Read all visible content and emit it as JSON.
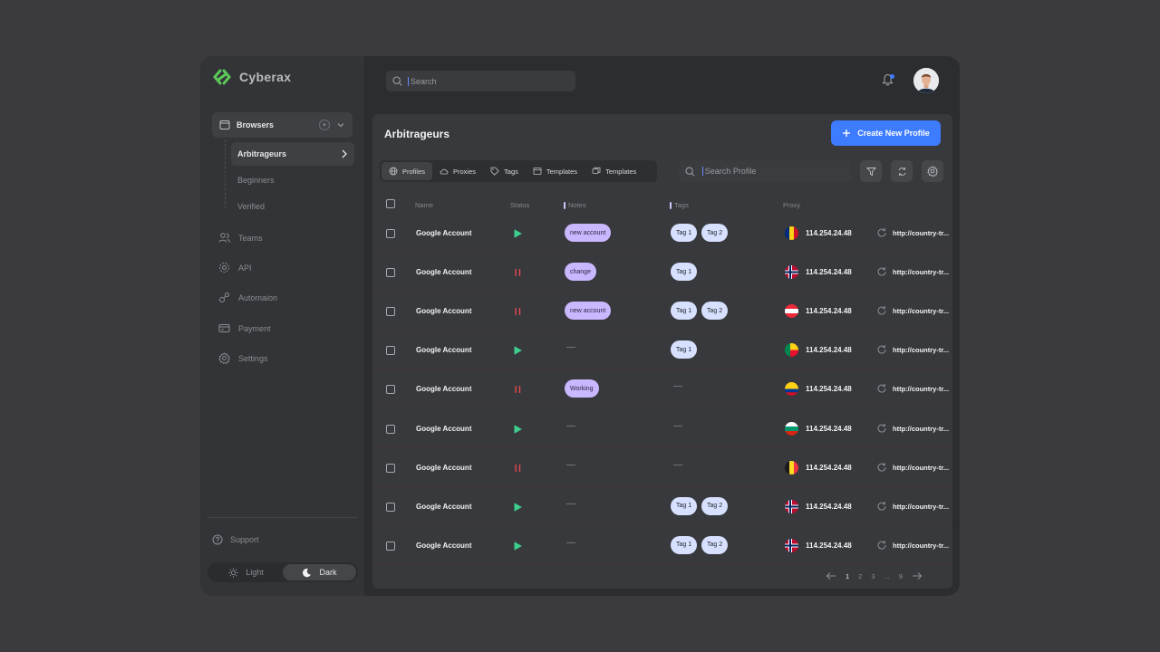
{
  "app": {
    "name": "Cyberax"
  },
  "sidebar": {
    "browsers_label": "Browsers",
    "sub_items": [
      "Arbitrageurs",
      "Beginners",
      "Verified"
    ],
    "nav": [
      {
        "label": "Teams",
        "icon": "users-icon"
      },
      {
        "label": "API",
        "icon": "api-icon"
      },
      {
        "label": "Automaion",
        "icon": "automation-icon"
      },
      {
        "label": "Payment",
        "icon": "payment-icon"
      },
      {
        "label": "Settings",
        "icon": "settings-icon"
      }
    ],
    "support_label": "Support",
    "theme": {
      "light": "Light",
      "dark": "Dark",
      "selected": "Dark"
    }
  },
  "header": {
    "search_placeholder": "Search"
  },
  "main": {
    "title": "Arbitrageurs",
    "create_button": "Create New Profile",
    "tabs": [
      {
        "label": "Profiles",
        "icon": "globe-icon"
      },
      {
        "label": "Proxies",
        "icon": "cloud-icon"
      },
      {
        "label": "Tags",
        "icon": "tag-icon"
      },
      {
        "label": "Templates",
        "icon": "template-icon"
      },
      {
        "label": "Templates",
        "icon": "copy-template-icon"
      }
    ],
    "active_tab": "Profiles",
    "search_placeholder": "Search Profile",
    "columns": [
      "Name",
      "Status",
      "Notes",
      "Tags",
      "Proxy"
    ],
    "rows": [
      {
        "name": "Google Account",
        "status": "running",
        "note": "new account",
        "tags": [
          "Tag 1",
          "Tag 2"
        ],
        "flag": "romania",
        "ip": "114.254.24.48",
        "url": "http://country-tr..."
      },
      {
        "name": "Google Account",
        "status": "paused",
        "note": "change",
        "tags": [
          "Tag 1"
        ],
        "flag": "norway",
        "ip": "114.254.24.48",
        "url": "http://country-tr..."
      },
      {
        "name": "Google Account",
        "status": "paused",
        "note": "new account",
        "tags": [
          "Tag 1",
          "Tag 2"
        ],
        "flag": "austria",
        "ip": "114.254.24.48",
        "url": "http://country-tr..."
      },
      {
        "name": "Google Account",
        "status": "running",
        "note": "",
        "tags": [
          "Tag 1"
        ],
        "flag": "benin",
        "ip": "114.254.24.48",
        "url": "http://country-tr..."
      },
      {
        "name": "Google Account",
        "status": "paused",
        "note": "Working",
        "tags": [],
        "flag": "colombia",
        "ip": "114.254.24.48",
        "url": "http://country-tr..."
      },
      {
        "name": "Google Account",
        "status": "running",
        "note": "",
        "tags": [],
        "flag": "bulgaria",
        "ip": "114.254.24.48",
        "url": "http://country-tr..."
      },
      {
        "name": "Google Account",
        "status": "paused",
        "note": "",
        "tags": [],
        "flag": "belgium",
        "ip": "114.254.24.48",
        "url": "http://country-tr..."
      },
      {
        "name": "Google Account",
        "status": "running",
        "note": "",
        "tags": [
          "Tag 1",
          "Tag 2"
        ],
        "flag": "norway",
        "ip": "114.254.24.48",
        "url": "http://country-tr..."
      },
      {
        "name": "Google Account",
        "status": "running",
        "note": "",
        "tags": [
          "Tag 1",
          "Tag 2"
        ],
        "flag": "norway",
        "ip": "114.254.24.48",
        "url": "http://country-tr..."
      }
    ],
    "pagination": {
      "pages": [
        "1",
        "2",
        "3",
        "...",
        "9"
      ],
      "current": "1"
    }
  },
  "colors": {
    "accent": "#3d7bff",
    "running": "#3ecf8e",
    "paused": "#e5484d",
    "note": "#c9b8ff",
    "tag": "#d7e1ff"
  }
}
